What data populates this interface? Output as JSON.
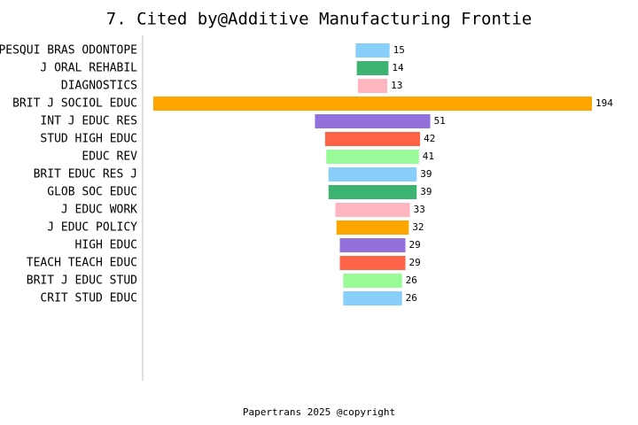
{
  "chart_data": {
    "type": "funnel",
    "title": "7. Cited by@Additive Manufacturing Frontie",
    "categories": [
      "PESQUI BRAS ODONTOPE",
      "J ORAL REHABIL",
      "DIAGNOSTICS",
      "BRIT J SOCIOL EDUC",
      "INT J EDUC RES",
      "STUD HIGH EDUC",
      "EDUC REV",
      "BRIT EDUC RES J",
      "GLOB SOC EDUC",
      "J EDUC WORK",
      "J EDUC POLICY",
      "HIGH EDUC",
      "TEACH TEACH EDUC",
      "BRIT J EDUC STUD",
      "CRIT STUD EDUC"
    ],
    "values": [
      15,
      14,
      13,
      194,
      51,
      42,
      41,
      39,
      39,
      33,
      32,
      29,
      29,
      26,
      26
    ],
    "colors": [
      "#87cefa",
      "#3cb371",
      "#ffb6c1",
      "#ffa500",
      "#9370db",
      "#ff6347",
      "#98fb98",
      "#87cefa",
      "#3cb371",
      "#ffb6c1",
      "#ffa500",
      "#9370db",
      "#ff6347",
      "#98fb98",
      "#87cefa"
    ]
  },
  "footer": "Papertrans 2025 @copyright"
}
